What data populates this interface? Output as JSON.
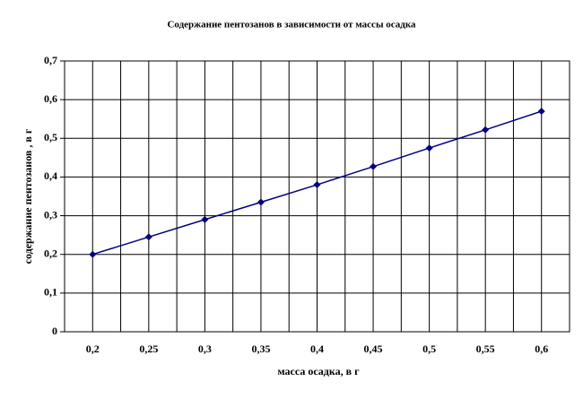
{
  "chart_data": {
    "type": "line",
    "title": "Содержание пентозанов в зависимости от массы осадка",
    "x_label": "масса осадка, в г",
    "y_label": "содержание пентозанов , в г",
    "categories": [
      "0,2",
      "0,25",
      "0,3",
      "0,35",
      "0,4",
      "0,45",
      "0,5",
      "0,55",
      "0,6"
    ],
    "series": [
      {
        "name": "содержание пентозанов",
        "color": "#000080",
        "values": [
          0.2,
          0.245,
          0.29,
          0.335,
          0.38,
          0.427,
          0.475,
          0.522,
          0.57
        ]
      }
    ],
    "ylim": [
      0,
      0.7
    ],
    "yticks": [
      0,
      {
        "value": 0.1,
        "label": "0,1"
      },
      {
        "value": 0.2,
        "label": "0,2"
      },
      {
        "value": 0.3,
        "label": "0,3"
      },
      {
        "value": 0.4,
        "label": "0,4"
      },
      {
        "value": 0.5,
        "label": "0,5"
      },
      {
        "value": 0.6,
        "label": "0,6"
      },
      {
        "value": 0.7,
        "label": "0,7"
      }
    ],
    "grid": true
  }
}
